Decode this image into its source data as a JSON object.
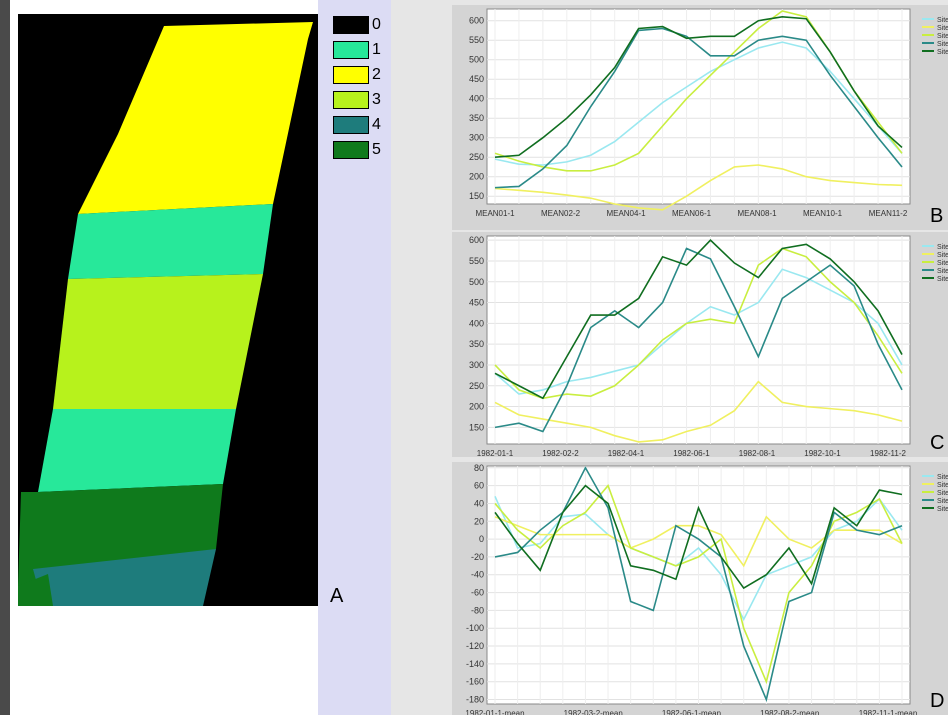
{
  "panels": {
    "A": "A",
    "B": "B",
    "C": "C",
    "D": "D"
  },
  "legend_map": [
    {
      "label": "0",
      "color": "#000000"
    },
    {
      "label": "1",
      "color": "#27e89a"
    },
    {
      "label": "2",
      "color": "#ffff00"
    },
    {
      "label": "3",
      "color": "#b7f21c"
    },
    {
      "label": "4",
      "color": "#1e7c7c"
    },
    {
      "label": "5",
      "color": "#0f7a1c"
    }
  ],
  "chart_data": [
    {
      "type": "line",
      "panel": "B",
      "x_tick_labels": [
        "MEAN01-1",
        "MEAN02-2",
        "MEAN04-1",
        "MEAN06-1",
        "MEAN08-1",
        "MEAN10-1",
        "MEAN11-2"
      ],
      "ylim": [
        130,
        630
      ],
      "yticks": [
        150,
        200,
        250,
        300,
        350,
        400,
        450,
        500,
        550,
        600
      ],
      "series": [
        {
          "name": "Site",
          "color": "#9ae8f0",
          "values": [
            245,
            232,
            230,
            238,
            255,
            290,
            340,
            390,
            430,
            470,
            500,
            530,
            545,
            530,
            470,
            400,
            330,
            260
          ]
        },
        {
          "name": "Site",
          "color": "#f0f060",
          "values": [
            170,
            165,
            160,
            153,
            145,
            130,
            120,
            115,
            150,
            190,
            225,
            230,
            220,
            200,
            190,
            185,
            180,
            178
          ]
        },
        {
          "name": "Site",
          "color": "#c9ee40",
          "values": [
            260,
            240,
            225,
            215,
            215,
            230,
            260,
            330,
            400,
            460,
            520,
            580,
            625,
            610,
            520,
            420,
            340,
            260
          ]
        },
        {
          "name": "Site",
          "color": "#2a8a88",
          "values": [
            172,
            175,
            220,
            280,
            380,
            470,
            575,
            580,
            560,
            510,
            510,
            550,
            560,
            550,
            460,
            380,
            300,
            225
          ]
        },
        {
          "name": "Site",
          "color": "#106e20",
          "values": [
            250,
            255,
            300,
            350,
            410,
            480,
            580,
            585,
            555,
            560,
            560,
            600,
            610,
            605,
            520,
            420,
            330,
            275
          ]
        }
      ]
    },
    {
      "type": "line",
      "panel": "C",
      "x_tick_labels": [
        "1982-01-1",
        "1982-02-2",
        "1982-04-1",
        "1982-06-1",
        "1982-08-1",
        "1982-10-1",
        "1982-11-2"
      ],
      "ylim": [
        110,
        610
      ],
      "yticks": [
        150,
        200,
        250,
        300,
        350,
        400,
        450,
        500,
        550,
        600
      ],
      "series": [
        {
          "name": "Site",
          "color": "#9ae8f0",
          "values": [
            280,
            230,
            240,
            260,
            270,
            285,
            300,
            350,
            400,
            440,
            420,
            450,
            530,
            510,
            480,
            450,
            400,
            300
          ]
        },
        {
          "name": "Site",
          "color": "#f0f060",
          "values": [
            210,
            180,
            170,
            160,
            150,
            130,
            115,
            120,
            140,
            155,
            190,
            260,
            210,
            200,
            195,
            190,
            180,
            165
          ]
        },
        {
          "name": "Site",
          "color": "#c9ee40",
          "values": [
            300,
            240,
            220,
            230,
            225,
            250,
            300,
            360,
            400,
            410,
            400,
            540,
            580,
            560,
            500,
            450,
            370,
            280
          ]
        },
        {
          "name": "Site",
          "color": "#2a8a88",
          "values": [
            150,
            160,
            140,
            250,
            390,
            430,
            390,
            450,
            580,
            555,
            440,
            320,
            460,
            500,
            540,
            490,
            350,
            240
          ]
        },
        {
          "name": "Site",
          "color": "#106e20",
          "values": [
            280,
            250,
            220,
            320,
            420,
            420,
            460,
            560,
            540,
            600,
            545,
            510,
            580,
            590,
            555,
            500,
            430,
            325
          ]
        }
      ]
    },
    {
      "type": "line",
      "panel": "D",
      "x_tick_labels": [
        "1982-01-1-mean",
        "1982-03-2-mean",
        "1982-06-1-mean",
        "1982-08-2-mean",
        "1982-11-1-mean"
      ],
      "ylim": [
        -185,
        82
      ],
      "yticks": [
        80,
        60,
        40,
        20,
        0,
        -20,
        -40,
        -60,
        -80,
        -100,
        -120,
        -140,
        -160,
        -180
      ],
      "series": [
        {
          "name": "Site",
          "color": "#9ae8f0",
          "values": [
            48,
            -10,
            -5,
            25,
            28,
            5,
            -10,
            -20,
            -30,
            -10,
            -40,
            -90,
            -40,
            -30,
            -20,
            10,
            20,
            45,
            10
          ]
        },
        {
          "name": "Site",
          "color": "#f0f060",
          "values": [
            25,
            15,
            5,
            5,
            5,
            5,
            -10,
            0,
            15,
            15,
            5,
            -30,
            25,
            0,
            -10,
            10,
            10,
            10,
            -5
          ]
        },
        {
          "name": "Site",
          "color": "#c9ee40",
          "values": [
            40,
            10,
            -10,
            15,
            30,
            60,
            -10,
            -20,
            -30,
            -20,
            0,
            -100,
            -160,
            -60,
            -30,
            20,
            30,
            45,
            -5
          ]
        },
        {
          "name": "Site",
          "color": "#2a8a88",
          "values": [
            -20,
            -15,
            10,
            30,
            80,
            35,
            -70,
            -80,
            15,
            0,
            -20,
            -120,
            -180,
            -70,
            -60,
            30,
            10,
            5,
            15
          ]
        },
        {
          "name": "Site",
          "color": "#106e20",
          "values": [
            30,
            -5,
            -35,
            30,
            60,
            40,
            -30,
            -35,
            -45,
            35,
            -20,
            -55,
            -40,
            -10,
            -50,
            35,
            15,
            55,
            50
          ]
        }
      ]
    }
  ]
}
